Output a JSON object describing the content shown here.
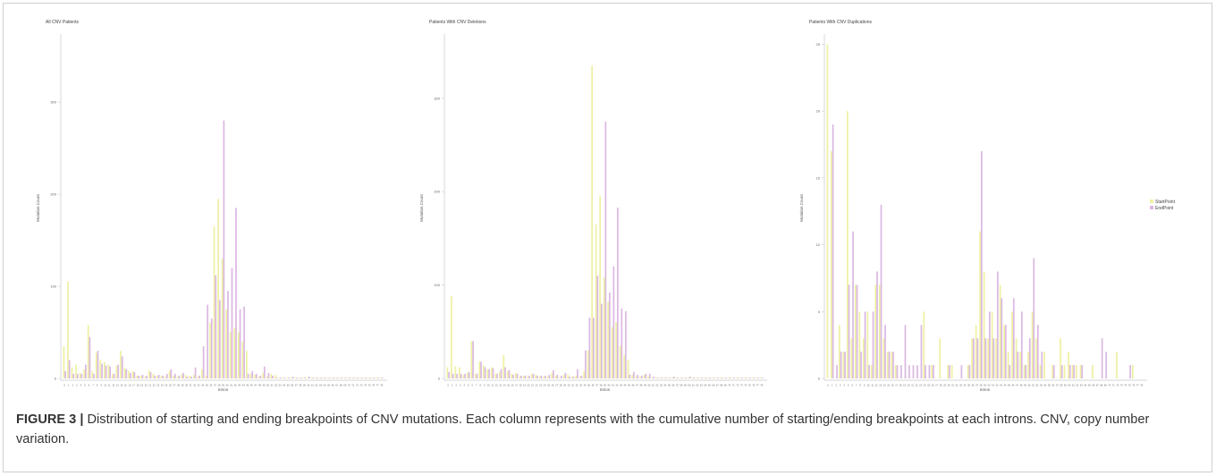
{
  "figure_label": "FIGURE 3 |",
  "caption": "Distribution of starting and ending breakpoints of CNV mutations. Each column represents with the cumulative number of starting/ending breakpoints at each introns. CNV, copy number variation.",
  "colors": {
    "start": "#eef0a3",
    "end": "#dbb8e2",
    "axis": "#c9c9c9",
    "text": "#666666"
  },
  "legend": [
    {
      "name": "StartPoint",
      "color": "#eef0a3"
    },
    {
      "name": "EndPoint",
      "color": "#dbb8e2"
    }
  ],
  "chart_data": [
    {
      "type": "bar",
      "title": "All CNV Patients",
      "xlabel": "Intron",
      "ylabel": "Mutation Count",
      "ylim": [
        0,
        370
      ],
      "yticks": [
        0,
        100,
        200,
        300
      ],
      "categories": [
        "0",
        "1",
        "2",
        "3",
        "4",
        "5",
        "6",
        "7",
        "8",
        "9",
        "10",
        "11",
        "12",
        "13",
        "14",
        "15",
        "16",
        "17",
        "18",
        "19",
        "20",
        "21",
        "22",
        "23",
        "24",
        "25",
        "26",
        "27",
        "28",
        "29",
        "30",
        "31",
        "32",
        "33",
        "34",
        "35",
        "36",
        "37",
        "38",
        "39",
        "40",
        "41",
        "42",
        "43",
        "44",
        "45",
        "46",
        "47",
        "48",
        "49",
        "50",
        "51",
        "52",
        "53",
        "54",
        "55",
        "56",
        "57",
        "58",
        "59",
        "60",
        "61",
        "62",
        "63",
        "64",
        "65",
        "66",
        "67",
        "68",
        "69",
        "70",
        "71",
        "72",
        "73",
        "74",
        "75",
        "76",
        "77",
        "78"
      ],
      "series": [
        {
          "name": "StartPoint",
          "values": [
            35,
            105,
            12,
            15,
            6,
            10,
            58,
            8,
            28,
            20,
            18,
            15,
            5,
            14,
            30,
            12,
            8,
            8,
            3,
            3,
            2,
            9,
            5,
            3,
            3,
            2,
            8,
            3,
            2,
            4,
            4,
            3,
            4,
            2,
            10,
            3,
            60,
            165,
            195,
            130,
            75,
            50,
            55,
            50,
            40,
            30,
            5,
            4,
            2,
            6,
            2,
            5,
            4,
            1,
            1,
            1,
            1,
            1,
            1,
            1,
            1,
            1,
            1,
            1,
            1,
            1,
            1,
            1,
            1,
            1,
            1,
            1,
            1,
            1,
            1,
            1,
            1,
            1,
            1
          ]
        },
        {
          "name": "EndPoint",
          "values": [
            8,
            20,
            5,
            5,
            5,
            15,
            45,
            5,
            30,
            16,
            14,
            13,
            5,
            15,
            24,
            10,
            6,
            7,
            3,
            4,
            3,
            7,
            3,
            4,
            3,
            5,
            10,
            5,
            3,
            6,
            2,
            2,
            12,
            3,
            35,
            80,
            65,
            112,
            85,
            280,
            95,
            120,
            185,
            75,
            78,
            5,
            8,
            5,
            3,
            13,
            6,
            3,
            1,
            1,
            1,
            1,
            2,
            1,
            1,
            1,
            2,
            1,
            1,
            1,
            1,
            1,
            1,
            1,
            1,
            1,
            1,
            1,
            1,
            1,
            1,
            1,
            1,
            1,
            1
          ]
        }
      ]
    },
    {
      "type": "bar",
      "title": "Patients With CNV Deletions",
      "xlabel": "Intron",
      "ylabel": "Mutation Count",
      "ylim": [
        0,
        365
      ],
      "yticks": [
        0,
        100,
        200,
        300
      ],
      "categories": [
        "0",
        "1",
        "2",
        "3",
        "4",
        "5",
        "6",
        "7",
        "8",
        "9",
        "10",
        "11",
        "12",
        "13",
        "14",
        "15",
        "16",
        "17",
        "18",
        "19",
        "20",
        "21",
        "22",
        "23",
        "24",
        "25",
        "26",
        "27",
        "28",
        "29",
        "30",
        "31",
        "32",
        "33",
        "34",
        "35",
        "36",
        "37",
        "38",
        "39",
        "40",
        "41",
        "42",
        "43",
        "44",
        "45",
        "46",
        "47",
        "48",
        "49",
        "50",
        "51",
        "52",
        "53",
        "54",
        "55",
        "56",
        "57",
        "58",
        "59",
        "60",
        "61",
        "62",
        "63",
        "64",
        "65",
        "66",
        "67",
        "68",
        "69",
        "70",
        "71",
        "72",
        "73",
        "74",
        "75",
        "76",
        "77",
        "78"
      ],
      "series": [
        {
          "name": "StartPoint",
          "values": [
            12,
            88,
            13,
            12,
            4,
            6,
            40,
            5,
            18,
            14,
            10,
            12,
            5,
            7,
            25,
            8,
            5,
            6,
            2,
            3,
            2,
            5,
            4,
            2,
            2,
            2,
            6,
            3,
            1,
            4,
            4,
            2,
            3,
            2,
            8,
            30,
            335,
            165,
            195,
            108,
            82,
            55,
            60,
            35,
            25,
            20,
            4,
            2,
            2,
            4,
            2,
            1,
            1,
            1,
            1,
            1,
            1,
            1,
            1,
            1,
            1,
            1,
            1,
            1,
            1,
            1,
            1,
            1,
            1,
            1,
            1,
            1,
            1,
            1,
            1,
            1,
            1,
            1,
            1
          ]
        },
        {
          "name": "EndPoint",
          "values": [
            7,
            5,
            5,
            5,
            5,
            7,
            40,
            5,
            18,
            12,
            10,
            11,
            5,
            10,
            12,
            9,
            4,
            5,
            3,
            3,
            3,
            5,
            3,
            3,
            3,
            4,
            9,
            4,
            3,
            6,
            2,
            2,
            10,
            3,
            30,
            65,
            65,
            110,
            80,
            275,
            92,
            120,
            183,
            75,
            72,
            4,
            7,
            4,
            3,
            5,
            5,
            2,
            1,
            1,
            1,
            1,
            2,
            1,
            1,
            1,
            2,
            1,
            1,
            1,
            1,
            1,
            1,
            1,
            1,
            1,
            1,
            1,
            1,
            1,
            1,
            1,
            1,
            1,
            1
          ]
        }
      ]
    },
    {
      "type": "bar",
      "title": "Patients With CNV Duplications",
      "xlabel": "Intron",
      "ylabel": "Mutation Count",
      "ylim": [
        0,
        25.5
      ],
      "yticks": [
        0,
        5,
        10,
        15,
        20,
        25
      ],
      "categories": [
        "0",
        "1",
        "2",
        "3",
        "4",
        "5",
        "6",
        "7",
        "8",
        "9",
        "10",
        "11",
        "12",
        "13",
        "14",
        "15",
        "16",
        "17",
        "18",
        "19",
        "20",
        "21",
        "22",
        "23",
        "24",
        "25",
        "26",
        "27",
        "28",
        "29",
        "30",
        "31",
        "32",
        "33",
        "34",
        "35",
        "36",
        "37",
        "38",
        "39",
        "40",
        "41",
        "42",
        "43",
        "44",
        "45",
        "46",
        "47",
        "48",
        "49",
        "50",
        "51",
        "52",
        "53",
        "54",
        "55",
        "56",
        "57",
        "58",
        "59",
        "60",
        "61",
        "62",
        "63",
        "64",
        "65",
        "66",
        "67",
        "68",
        "69",
        "70",
        "71",
        "72",
        "73",
        "74",
        "75",
        "76",
        "77",
        "78"
      ],
      "series": [
        {
          "name": "StartPoint",
          "values": [
            25,
            17,
            0,
            4,
            2,
            20,
            3,
            7,
            5,
            3,
            5,
            1,
            7,
            7,
            3,
            2,
            2,
            1,
            0,
            0,
            0,
            0,
            0,
            0,
            5,
            0,
            1,
            0,
            3,
            0,
            1,
            1,
            0,
            0,
            0,
            1,
            3,
            4,
            11,
            8,
            3,
            5,
            3,
            7,
            4,
            2,
            5,
            3,
            2,
            1,
            2,
            5,
            3,
            1,
            2,
            0,
            1,
            0,
            3,
            1,
            2,
            1,
            1,
            1,
            0,
            0,
            1,
            0,
            0,
            0,
            0,
            0,
            2,
            0,
            0,
            0,
            1,
            0,
            0
          ]
        },
        {
          "name": "EndPoint",
          "values": [
            0,
            19,
            1,
            2,
            2,
            7,
            11,
            7,
            2,
            5,
            1,
            5,
            8,
            13,
            4,
            2,
            2,
            1,
            1,
            4,
            1,
            1,
            1,
            4,
            1,
            1,
            1,
            0,
            0,
            0,
            1,
            0,
            0,
            1,
            0,
            1,
            3,
            3,
            17,
            3,
            5,
            3,
            8,
            6,
            4,
            1,
            6,
            2,
            5,
            1,
            3,
            9,
            4,
            2,
            0,
            0,
            1,
            0,
            1,
            0,
            1,
            1,
            0,
            1,
            0,
            0,
            0,
            0,
            3,
            2,
            0,
            0,
            0,
            0,
            0,
            1,
            0,
            0,
            0
          ]
        }
      ]
    }
  ]
}
